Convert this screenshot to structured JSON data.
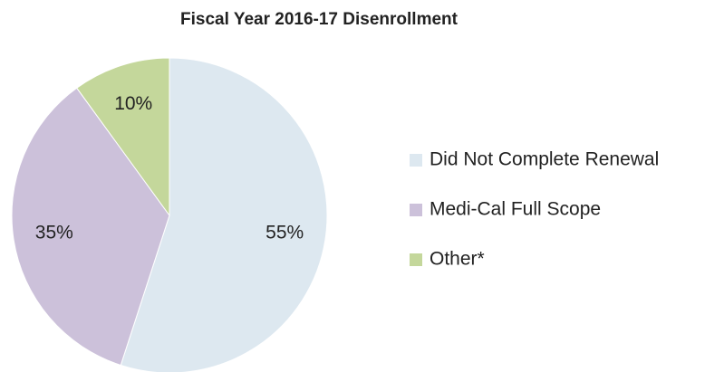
{
  "chart_data": {
    "type": "pie",
    "title": "Fiscal Year 2016-17 Disenrollment",
    "categories": [
      "Did Not Complete Renewal",
      "Medi-Cal Full Scope",
      "Other*"
    ],
    "values": [
      55,
      35,
      10
    ],
    "value_labels": [
      "55%",
      "35%",
      "10%"
    ],
    "colors": [
      "#dde8f0",
      "#ccc1da",
      "#c4d79b"
    ],
    "legend": "right"
  }
}
